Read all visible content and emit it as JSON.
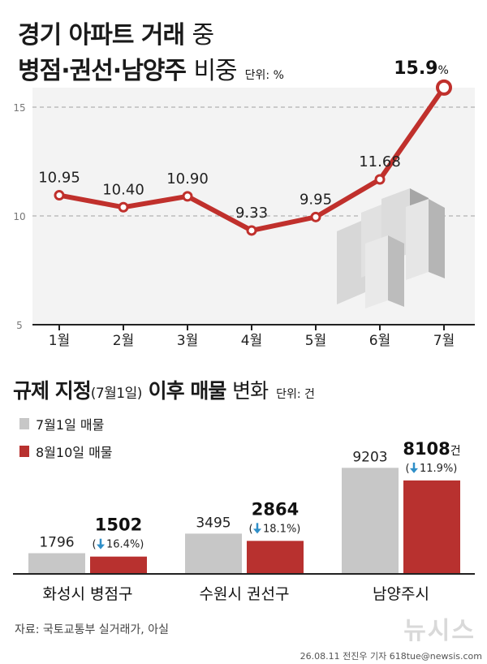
{
  "header": {
    "title_bold": "경기 아파트 거래",
    "title_light": "중",
    "subtitle_bold": "병점·권선·남양주",
    "subtitle_light": "비중",
    "unit": "단위: %"
  },
  "chart_data": [
    {
      "type": "line",
      "x": [
        "1월",
        "2월",
        "3월",
        "4월",
        "5월",
        "6월",
        "7월"
      ],
      "values": [
        10.95,
        10.4,
        10.9,
        9.33,
        9.95,
        11.68,
        15.9
      ],
      "value_labels": [
        "10.95",
        "10.40",
        "10.90",
        "9.33",
        "9.95",
        "11.68",
        "15.9"
      ],
      "last_label_unit": "%",
      "yticks": [
        "15",
        "10",
        "5"
      ],
      "ylim": [
        5,
        16.5
      ],
      "grid": true,
      "colors": {
        "line": "#c0302c",
        "grid": "#bdbdbd",
        "plot_bg": "#f3f3f3"
      }
    },
    {
      "type": "bar",
      "title_bold": "규제 지정",
      "title_paren": "(7월1일)",
      "title_bold2": "이후 매물",
      "title_light": "변화",
      "unit": "단위: 건",
      "categories": [
        "화성시 병점구",
        "수원시 권선구",
        "남양주시"
      ],
      "series": [
        {
          "name": "7월1일 매물",
          "values": [
            1796,
            3495,
            9203
          ],
          "labels": [
            "1796",
            "3495",
            "9203"
          ],
          "color": "#c7c7c7"
        },
        {
          "name": "8월10일 매물",
          "values": [
            1502,
            2864,
            8108
          ],
          "labels": [
            "1502",
            "2864",
            "8108"
          ],
          "color": "#b8312f"
        }
      ],
      "changes": [
        "16.4%",
        "18.1%",
        "11.9%"
      ],
      "last_value_unit": "건"
    }
  ],
  "footer": {
    "source": "자료: 국토교통부 실거래가, 아실",
    "credit": "26.08.11 전진우 기자 618tue@newsis.com",
    "logo": "뉴시스"
  }
}
